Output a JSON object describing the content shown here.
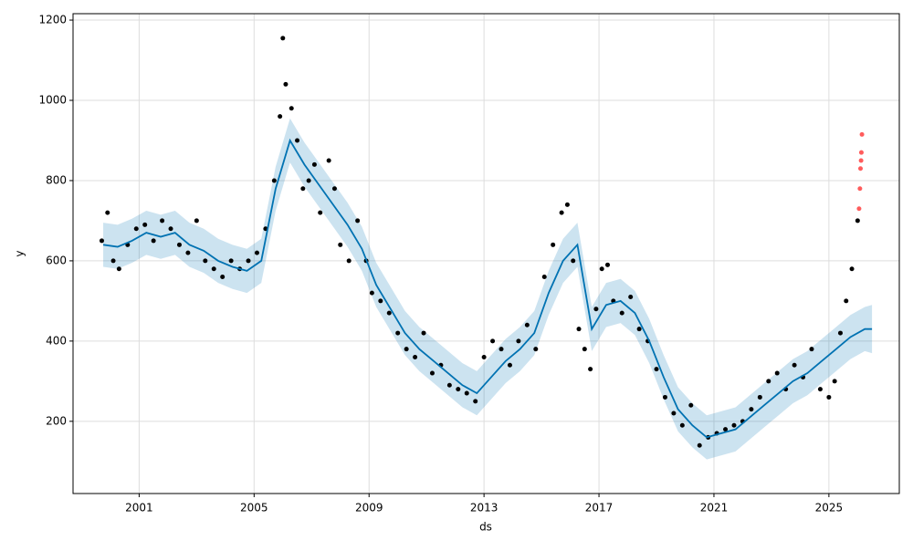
{
  "chart_data": {
    "type": "line",
    "xlabel": "ds",
    "ylabel": "y",
    "xlim": [
      1998.7,
      2027.45
    ],
    "ylim": [
      20,
      1216
    ],
    "xticks": [
      2001,
      2005,
      2009,
      2013,
      2017,
      2021,
      2025
    ],
    "yticks": [
      200,
      400,
      600,
      800,
      1000,
      1200
    ],
    "grid": true,
    "forecast": {
      "color": "#0072b2",
      "band_color": "#0072b2",
      "x": [
        1999.75,
        2000.25,
        2000.75,
        2001.25,
        2001.75,
        2002.25,
        2002.75,
        2003.25,
        2003.75,
        2004.25,
        2004.75,
        2005.25,
        2005.75,
        2006.25,
        2006.75,
        2007.25,
        2007.75,
        2008.25,
        2008.75,
        2009.25,
        2009.75,
        2010.25,
        2010.75,
        2011.25,
        2011.75,
        2012.25,
        2012.75,
        2013.25,
        2013.75,
        2014.25,
        2014.75,
        2015.25,
        2015.75,
        2016.25,
        2016.75,
        2017.25,
        2017.75,
        2018.25,
        2018.75,
        2019.25,
        2019.75,
        2020.25,
        2020.75,
        2021.25,
        2021.75,
        2022.25,
        2022.75,
        2023.25,
        2023.75,
        2024.25,
        2024.75,
        2025.25,
        2025.75,
        2026.25,
        2026.5
      ],
      "values": [
        640,
        635,
        650,
        670,
        660,
        670,
        640,
        625,
        600,
        585,
        575,
        600,
        780,
        900,
        840,
        790,
        740,
        690,
        630,
        540,
        480,
        420,
        380,
        350,
        320,
        290,
        270,
        310,
        350,
        380,
        420,
        520,
        600,
        640,
        430,
        490,
        500,
        470,
        400,
        310,
        230,
        190,
        160,
        170,
        180,
        210,
        240,
        270,
        300,
        320,
        350,
        380,
        410,
        430,
        430
      ],
      "lower": [
        585,
        580,
        595,
        615,
        605,
        615,
        585,
        570,
        545,
        530,
        520,
        545,
        725,
        845,
        785,
        735,
        685,
        635,
        575,
        485,
        425,
        365,
        325,
        295,
        265,
        235,
        215,
        255,
        295,
        325,
        365,
        465,
        545,
        585,
        375,
        435,
        445,
        415,
        345,
        255,
        175,
        135,
        105,
        115,
        125,
        155,
        185,
        215,
        245,
        265,
        295,
        325,
        355,
        375,
        370
      ],
      "upper": [
        695,
        690,
        705,
        725,
        715,
        725,
        695,
        680,
        655,
        640,
        630,
        655,
        835,
        955,
        895,
        845,
        795,
        745,
        685,
        595,
        535,
        475,
        435,
        405,
        375,
        345,
        325,
        365,
        405,
        435,
        475,
        575,
        655,
        695,
        485,
        545,
        555,
        525,
        455,
        365,
        285,
        245,
        215,
        225,
        235,
        265,
        295,
        325,
        355,
        375,
        405,
        435,
        465,
        485,
        490
      ]
    },
    "observed": {
      "color": "#000000",
      "x": [
        1999.7,
        1999.9,
        2000.1,
        2000.3,
        2000.6,
        2000.9,
        2001.2,
        2001.5,
        2001.8,
        2002.1,
        2002.4,
        2002.7,
        2003.0,
        2003.3,
        2003.6,
        2003.9,
        2004.2,
        2004.5,
        2004.8,
        2005.1,
        2005.4,
        2005.7,
        2005.9,
        2006.0,
        2006.1,
        2006.3,
        2006.5,
        2006.7,
        2006.9,
        2007.1,
        2007.3,
        2007.6,
        2007.8,
        2008.0,
        2008.3,
        2008.6,
        2008.9,
        2009.1,
        2009.4,
        2009.7,
        2010.0,
        2010.3,
        2010.6,
        2010.9,
        2011.2,
        2011.5,
        2011.8,
        2012.1,
        2012.4,
        2012.7,
        2013.0,
        2013.3,
        2013.6,
        2013.9,
        2014.2,
        2014.5,
        2014.8,
        2015.1,
        2015.4,
        2015.7,
        2015.9,
        2016.1,
        2016.3,
        2016.5,
        2016.7,
        2016.9,
        2017.1,
        2017.3,
        2017.5,
        2017.8,
        2018.1,
        2018.4,
        2018.7,
        2019.0,
        2019.3,
        2019.6,
        2019.9,
        2020.2,
        2020.5,
        2020.8,
        2021.1,
        2021.4,
        2021.7,
        2022.0,
        2022.3,
        2022.6,
        2022.9,
        2023.2,
        2023.5,
        2023.8,
        2024.1,
        2024.4,
        2024.7,
        2025.0,
        2025.2,
        2025.4,
        2025.6,
        2025.8,
        2026.0
      ],
      "values": [
        650,
        720,
        600,
        580,
        640,
        680,
        690,
        650,
        700,
        680,
        640,
        620,
        700,
        600,
        580,
        560,
        600,
        580,
        600,
        620,
        680,
        800,
        960,
        1155,
        1040,
        980,
        900,
        780,
        800,
        840,
        720,
        850,
        780,
        640,
        600,
        700,
        600,
        520,
        500,
        470,
        420,
        380,
        360,
        420,
        320,
        340,
        290,
        280,
        270,
        250,
        360,
        400,
        380,
        340,
        400,
        440,
        380,
        560,
        640,
        720,
        740,
        600,
        430,
        380,
        330,
        480,
        580,
        590,
        500,
        470,
        510,
        430,
        400,
        330,
        260,
        220,
        190,
        240,
        140,
        160,
        170,
        180,
        190,
        200,
        230,
        260,
        300,
        320,
        280,
        340,
        310,
        380,
        280,
        260,
        300,
        420,
        500,
        580,
        700
      ]
    },
    "outliers": {
      "color": "#ff3333",
      "x": [
        2026.05,
        2026.08,
        2026.1,
        2026.12,
        2026.13,
        2026.15
      ],
      "values": [
        730,
        780,
        830,
        850,
        870,
        915
      ]
    }
  }
}
